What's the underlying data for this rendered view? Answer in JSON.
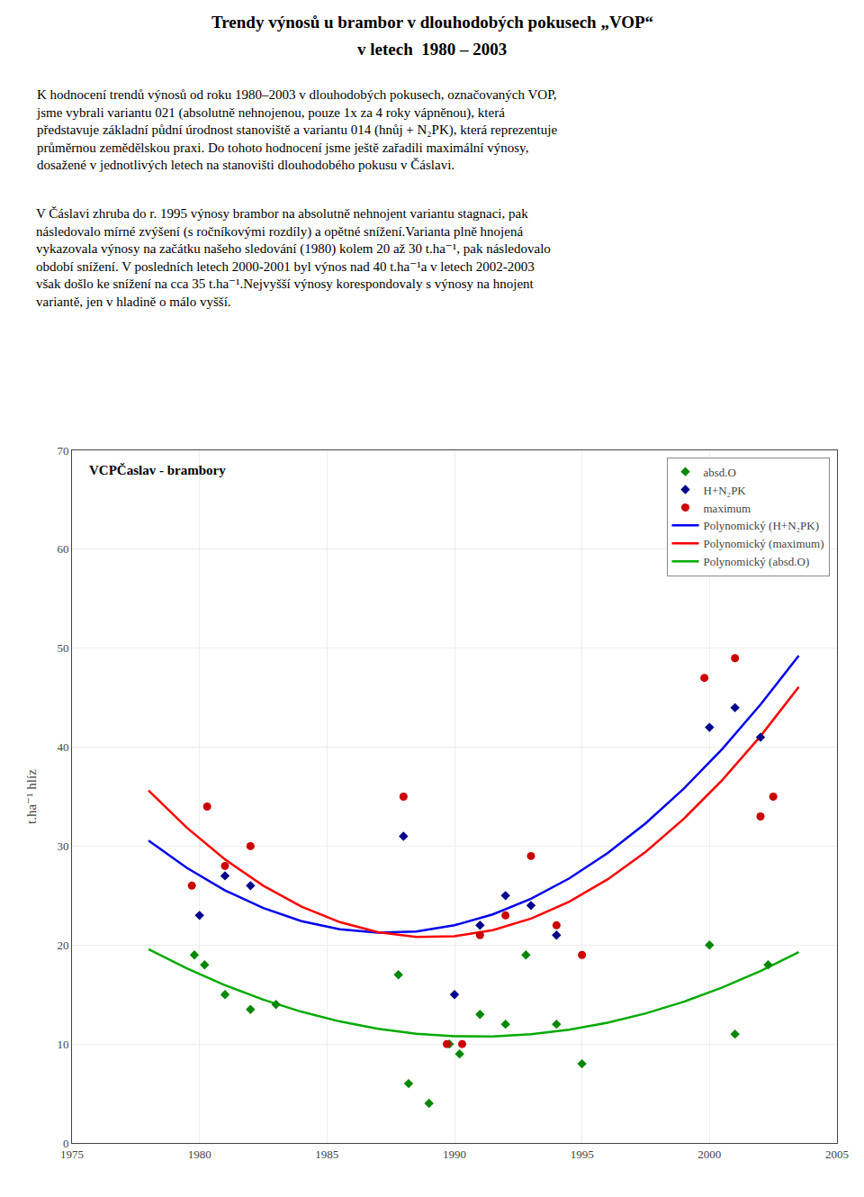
{
  "chart_data": {
    "type": "scatter",
    "title": "Trendy výnosů u brambor v dlouhodobých pokusech „VOP“",
    "subtitle": "v letech  1980 – 2003",
    "paragraphs": [
      [
        "K hodnocení trendů výnosů od roku 1980–2003 v dlouhodobých pokusech, označovaných VOP,",
        "jsme vybrali variantu 021 (absolutně nehnojenou, pouze 1x za 4 roky vápněnou), která",
        "představuje základní půdní úrodnost stanoviště a variantu 014 (hnůj + N₂PK), která reprezentuje",
        "průměrnou zemědělskou praxi. Do tohoto hodnocení jsme ještě zařadili maximální výnosy,",
        "dosažené v jednotlivých letech na stanovišti dlouhodobého pokusu v Čáslavi."
      ],
      [
        "V Čáslavi zhruba do r. 1995 výnosy brambor na absolutně nehnojent variantu stagnaci, pak",
        "následovalo mírné zvýšení (s ročníkovými rozdíly) a opětné snížení.Varianta plně hnojená",
        "vykazovala výnosy na začátku našeho sledování (1980) kolem 20 až 30 t.ha⁻¹, pak následovalo",
        "období snížení. V posledních letech 2000-2001 byl výnos nad 40 t.ha⁻¹a v letech 2002-2003",
        "však došlo ke snížení na cca 35 t.ha⁻¹.Nejvyšší výnosy korespondovaly s výnosy na hnojent",
        "variantě, jen v hladině o málo vyšší."
      ]
    ],
    "annotation": "VCPČaslav - brambory",
    "ylabel": "t.ha⁻¹ hlíz",
    "xlim": [
      1975,
      2005
    ],
    "ylim": [
      0,
      70
    ],
    "xticks": [
      1975,
      1980,
      1985,
      1990,
      1995,
      2000,
      2005
    ],
    "yticks": [
      0,
      10,
      20,
      30,
      40,
      50,
      60,
      70
    ],
    "grid": true,
    "legend": "upper right",
    "series": [
      {
        "name": "absd.O",
        "type": "scatter",
        "marker": "diamond",
        "color": "#008800",
        "x": [
          1979.8,
          1980.2,
          1981,
          1982,
          1983,
          1987.8,
          1988.2,
          1989,
          1989.8,
          1990.2,
          1991,
          1992,
          1992.8,
          1994,
          1995,
          2000,
          2001,
          2002.3
        ],
        "values": [
          19,
          18,
          15,
          13.5,
          14,
          17,
          6,
          4,
          10,
          9,
          13,
          12,
          19,
          12,
          8,
          20,
          11,
          18
        ]
      },
      {
        "name": "H+N₂PK",
        "type": "scatter",
        "marker": "diamond",
        "color": "#00008B",
        "x": [
          1980,
          1981,
          1982,
          1988,
          1990,
          1991,
          1992,
          1993,
          1994,
          2000,
          2001,
          2002
        ],
        "values": [
          23,
          27,
          26,
          31,
          15,
          22,
          25,
          24,
          21,
          42,
          44,
          41
        ]
      },
      {
        "name": "maximum",
        "type": "scatter",
        "marker": "circle",
        "color": "#CC0000",
        "x": [
          1979.7,
          1980.3,
          1981,
          1982,
          1988,
          1989.7,
          1990.3,
          1991,
          1992,
          1993,
          1994,
          1995,
          1999.8,
          2001,
          2002,
          2002.5
        ],
        "values": [
          26,
          34,
          28,
          30,
          35,
          10,
          10,
          21,
          23,
          29,
          22,
          19,
          47,
          49,
          33,
          35
        ]
      },
      {
        "name": "Polynomický (H+N₂PK)",
        "type": "line",
        "line_style": "solid",
        "color": "#0000EE",
        "x": [
          1978,
          1979.5,
          1981,
          1982.5,
          1984,
          1985.5,
          1987,
          1988.5,
          1990,
          1991.5,
          1993,
          1994.5,
          1996,
          1997.5,
          1999,
          2000.5,
          2002,
          2003.5
        ],
        "values": [
          30.57,
          27.81,
          25.53,
          23.74,
          22.42,
          21.59,
          21.25,
          21.38,
          22.0,
          23.1,
          24.68,
          26.74,
          29.29,
          32.32,
          35.83,
          39.82,
          44.3,
          49.25
        ]
      },
      {
        "name": "Polynomický (maximum)",
        "type": "line",
        "line_style": "solid",
        "color": "#FF0000",
        "x": [
          1978,
          1979.5,
          1981,
          1982.5,
          1984,
          1985.5,
          1987,
          1988.5,
          1990,
          1991.5,
          1993,
          1994.5,
          1996,
          1997.5,
          1999,
          2000.5,
          2002,
          2003.5
        ],
        "values": [
          35.62,
          31.87,
          28.66,
          26.0,
          23.89,
          22.32,
          21.3,
          20.83,
          20.9,
          21.51,
          22.67,
          24.38,
          26.63,
          29.43,
          32.78,
          36.67,
          41.11,
          46.09
        ]
      },
      {
        "name": "Polynomický (absd.O)",
        "type": "line",
        "line_style": "solid",
        "color": "#00AA00",
        "x": [
          1978,
          1979.5,
          1981,
          1982.5,
          1984,
          1985.5,
          1987,
          1988.5,
          1990,
          1991.5,
          1993,
          1994.5,
          1996,
          1997.5,
          1999,
          2000.5,
          2002,
          2003.5
        ],
        "values": [
          19.59,
          17.65,
          15.94,
          14.48,
          13.26,
          12.28,
          11.54,
          11.04,
          10.78,
          10.76,
          10.99,
          11.45,
          12.15,
          13.1,
          14.28,
          15.71,
          17.38,
          19.28
        ]
      }
    ]
  }
}
